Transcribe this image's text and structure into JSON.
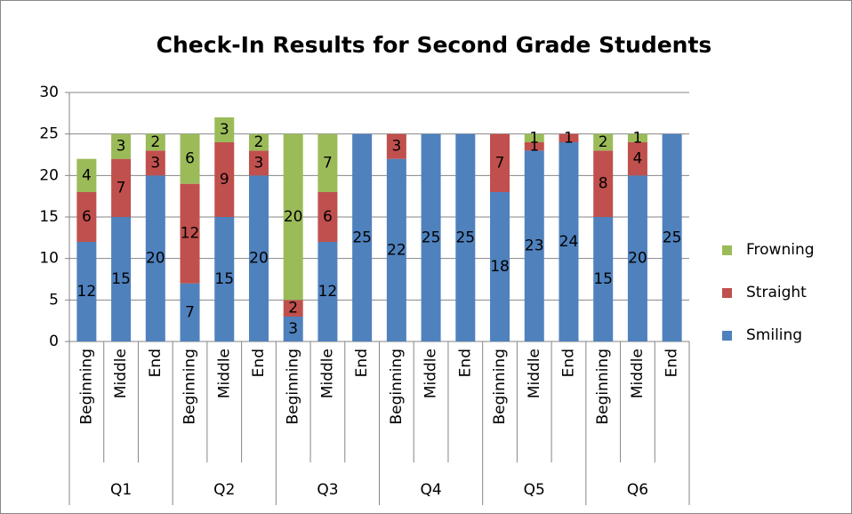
{
  "chart_data": {
    "type": "stacked-bar",
    "title": "Check-In Results for Second Grade Students",
    "groups": [
      "Q1",
      "Q2",
      "Q3",
      "Q4",
      "Q5",
      "Q6"
    ],
    "categories": [
      "Beginning",
      "Middle",
      "End",
      "Beginning",
      "Middle",
      "End",
      "Beginning",
      "Middle",
      "End",
      "Beginning",
      "Middle",
      "End",
      "Beginning",
      "Middle",
      "End",
      "Beginning",
      "Middle",
      "End"
    ],
    "series": [
      {
        "name": "Smiling",
        "color": "#4f81bd",
        "values": [
          12,
          15,
          20,
          7,
          15,
          20,
          3,
          12,
          25,
          22,
          25,
          25,
          18,
          23,
          24,
          15,
          20,
          25
        ]
      },
      {
        "name": "Straight",
        "color": "#c0504d",
        "values": [
          6,
          7,
          3,
          12,
          9,
          3,
          2,
          6,
          null,
          3,
          null,
          null,
          7,
          1,
          1,
          8,
          4,
          null
        ]
      },
      {
        "name": "Frowning",
        "color": "#9bbb59",
        "values": [
          4,
          3,
          2,
          6,
          3,
          2,
          20,
          7,
          null,
          null,
          null,
          null,
          null,
          1,
          null,
          2,
          1,
          null
        ]
      }
    ],
    "ylim": [
      0,
      30
    ],
    "yticks": [
      0,
      5,
      10,
      15,
      20,
      25,
      30
    ],
    "grid": true,
    "legend": "right"
  }
}
